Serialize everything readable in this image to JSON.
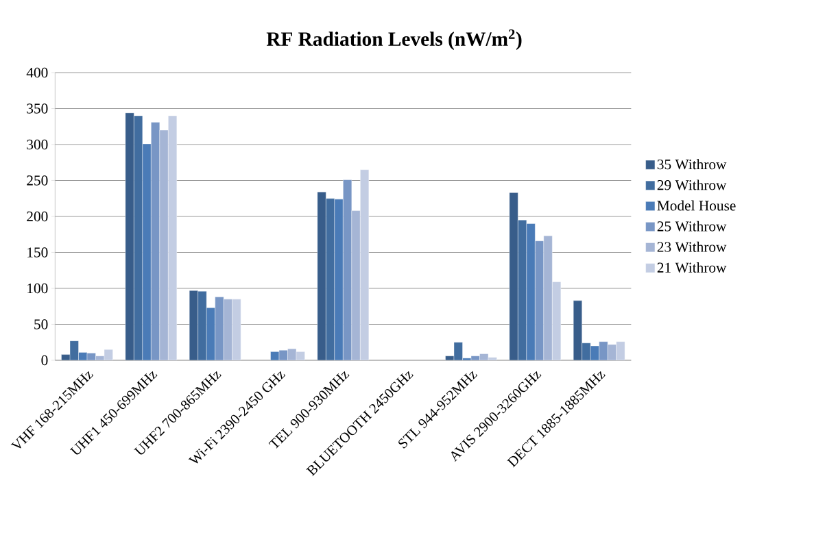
{
  "chart_data": {
    "type": "bar",
    "title": "RF Radiation Levels (nW/m$^{2}$)",
    "categories": [
      "VHF 168-215MHz",
      "UHF1 450-699MHz",
      "UHF2 700-865MHz",
      "Wi-Fi 2390-2450 GHz",
      "TEL 900-930MHz",
      "BLUETOOTH 2450GHz",
      "STL 944-952MHz",
      "AVIS 2900-3260GHz",
      "DECT 1885-1885MHz"
    ],
    "series": [
      {
        "name": "35 Withrow",
        "color": "#385d8a",
        "values": [
          8,
          344,
          97,
          null,
          234,
          null,
          6,
          233,
          83
        ]
      },
      {
        "name": "29 Withrow",
        "color": "#416d9f",
        "values": [
          27,
          340,
          96,
          null,
          225,
          null,
          25,
          195,
          24
        ]
      },
      {
        "name": "Model House",
        "color": "#4a7bb7",
        "values": [
          11,
          301,
          73,
          12,
          224,
          null,
          3,
          190,
          20
        ]
      },
      {
        "name": "25 Withrow",
        "color": "#7896c5",
        "values": [
          10,
          331,
          88,
          14,
          251,
          null,
          6,
          166,
          26
        ]
      },
      {
        "name": "23 Withrow",
        "color": "#a5b5d5",
        "values": [
          6,
          320,
          85,
          16,
          208,
          null,
          9,
          173,
          22
        ]
      },
      {
        "name": "21 Withrow",
        "color": "#c3cde3",
        "values": [
          15,
          340,
          85,
          12,
          265,
          null,
          4,
          109,
          26
        ]
      }
    ],
    "ylim": [
      0,
      400
    ],
    "yticks": [
      0,
      50,
      100,
      150,
      200,
      250,
      300,
      350,
      400
    ],
    "grid": "y",
    "legend": "right"
  }
}
